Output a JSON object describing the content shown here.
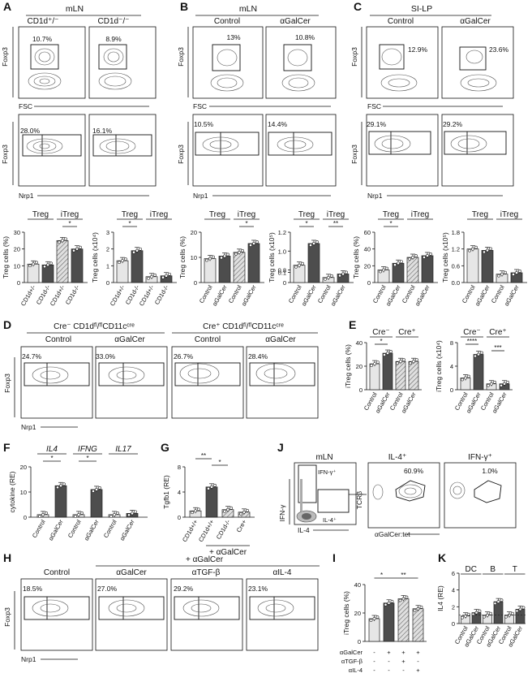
{
  "panels": {
    "A": {
      "letter": "A",
      "title": "mLN",
      "cols": [
        "CD1d⁺/⁻",
        "CD1d⁻/⁻"
      ],
      "gate1": [
        "10.7%",
        "8.9%"
      ],
      "gate2": [
        "28.0%",
        "16.1%"
      ],
      "bar_groups": [
        "Treg",
        "iTreg"
      ],
      "chart1": {
        "ylabel": "Treg cells (%)",
        "ticks": [
          "0",
          "10",
          "20",
          "30"
        ],
        "ymax": 30,
        "cats": [
          "CD1d+/-",
          "CD1d-/-",
          "CD1d+/-",
          "CD1d-/-"
        ],
        "values": [
          11,
          10.5,
          25,
          20
        ],
        "sig": "*",
        "sig_pair": [
          2,
          3
        ]
      },
      "chart2": {
        "ylabel": "Treg cells (x10⁴)",
        "ticks": [
          "0",
          "1",
          "2",
          "3"
        ],
        "ymax": 3,
        "cats": [
          "CD1d+/-",
          "CD1d-/-",
          "CD1d+/-",
          "CD1d-/-"
        ],
        "values": [
          1.3,
          1.9,
          0.35,
          0.4
        ],
        "sig": "*",
        "sig_pair": [
          0,
          1
        ]
      }
    },
    "B": {
      "letter": "B",
      "title": "mLN",
      "cols": [
        "Control",
        "αGalCer"
      ],
      "gate1": [
        "13%",
        "10.8%"
      ],
      "gate2": [
        "10.5%",
        "14.4%"
      ],
      "bar_groups": [
        "Treg",
        "iTreg"
      ],
      "chart1": {
        "ylabel": "Treg cells (%)",
        "ticks": [
          "0",
          "10",
          "20"
        ],
        "ymax": 20,
        "cats": [
          "Control",
          "αGalCer",
          "Control",
          "αGalCer"
        ],
        "values": [
          9.5,
          10.5,
          12,
          15.5
        ],
        "sig": "*",
        "sig_pair": [
          2,
          3
        ]
      },
      "chart2": {
        "ylabel": "Treg cells (x10⁵)",
        "ticks": [
          "0",
          "0.1",
          "0.8",
          "1.0",
          "1.2"
        ],
        "cats": [
          "Control",
          "αGalCer",
          "Control",
          "αGalCer"
        ],
        "values": [
          0.85,
          1.08,
          0.05,
          0.085
        ],
        "sig1": "*",
        "sig2": "**"
      }
    },
    "C": {
      "letter": "C",
      "title": "SI-LP",
      "cols": [
        "Control",
        "αGalCer"
      ],
      "gate1": [
        "12.9%",
        "23.6%"
      ],
      "gate2": [
        "29.1%",
        "29.2%"
      ],
      "bar_groups": [
        "Treg",
        "iTreg"
      ],
      "chart1": {
        "ylabel": "Treg cells (%)",
        "ticks": [
          "0",
          "20",
          "40",
          "60"
        ],
        "ymax": 60,
        "cats": [
          "Control",
          "αGalCer",
          "Control",
          "αGalCer"
        ],
        "values": [
          15,
          23,
          30,
          32
        ],
        "sig": "*",
        "sig_pair": [
          0,
          1
        ]
      },
      "chart2": {
        "ylabel": "Treg cells (x10⁵)",
        "ticks": [
          "0.0",
          "0.6",
          "1.2",
          "1.8"
        ],
        "ymax": 1.8,
        "cats": [
          "Control",
          "αGalCer",
          "Control",
          "αGalCer"
        ],
        "values": [
          1.2,
          1.15,
          0.3,
          0.35
        ]
      }
    },
    "D": {
      "letter": "D",
      "group1": "Cre⁻ CD1dᶠˡ/ᶠˡCD11cᶜʳᵉ",
      "group2": "Cre⁺ CD1dᶠˡ/ᶠˡCD11cᶜʳᵉ",
      "cols": [
        "Control",
        "αGalCer",
        "Control",
        "αGalCer"
      ],
      "gates": [
        "24.7%",
        "33.0%",
        "26.7%",
        "28.4%"
      ]
    },
    "E": {
      "letter": "E",
      "groups": [
        "Cre⁻",
        "Cre⁺"
      ],
      "chart1": {
        "ylabel": "iTreg cells (%)",
        "ticks": [
          "0",
          "20",
          "40"
        ],
        "ymax": 40,
        "cats": [
          "Control",
          "αGalCer",
          "Control",
          "αGalCer"
        ],
        "values": [
          22,
          31,
          24,
          24
        ],
        "sig": "*",
        "sig_pair": [
          0,
          1
        ]
      },
      "chart2": {
        "ylabel": "iTreg cells (x10⁴)",
        "ticks": [
          "0",
          "4",
          "8"
        ],
        "ymax": 8,
        "cats": [
          "Control",
          "αGalCer",
          "Control",
          "αGalCer"
        ],
        "values": [
          2,
          6,
          1,
          1
        ],
        "sig1": "****",
        "sig2": "***"
      }
    },
    "F": {
      "letter": "F",
      "ylabel": "cytokine (RE)",
      "ticks": [
        "0",
        "10",
        "20"
      ],
      "ymax": 20,
      "genes": [
        "IL4",
        "IFNG",
        "IL17"
      ],
      "cats": [
        "Control",
        "αGalCer",
        "Control",
        "αGalCer",
        "Control",
        "αGalCer"
      ],
      "values": [
        1,
        12.5,
        1,
        11,
        1,
        1.5
      ],
      "sig1": "*",
      "sig2": "*"
    },
    "G": {
      "letter": "G",
      "ylabel": "Tgfb1 (RE)",
      "ticks": [
        "0",
        "4",
        "8"
      ],
      "ymax": 8,
      "cats": [
        "CD1d+/+",
        "CD1d+/+",
        "CD1d-/-",
        "Cre+"
      ],
      "values": [
        1,
        4.8,
        1.2,
        0.8
      ],
      "footer": "+ αGalCer",
      "sig1": "**",
      "sig2": "*"
    },
    "J": {
      "letter": "J",
      "title": "mLN",
      "gate_a": "IFN-γ⁺",
      "gate_b": "IL-4⁺",
      "xlabel": "IL-4",
      "ylabel": "IFN-γ",
      "plot2_title": "IL-4⁺",
      "plot3_title": "IFN-γ⁺",
      "pct2": "60.9%",
      "pct3": "1.0%",
      "xlabel2": "αGalCer:tet",
      "ylabel2": "TCRβ"
    },
    "H": {
      "letter": "H",
      "header": "+ αGalCer",
      "cols": [
        "Control",
        "αGalCer",
        "αTGF-β",
        "αIL-4"
      ],
      "gates": [
        "18.5%",
        "27.0%",
        "29.2%",
        "23.1%"
      ]
    },
    "I": {
      "letter": "I",
      "ylabel": "iTreg cells (%)",
      "ticks": [
        "0",
        "20",
        "40"
      ],
      "ymax": 40,
      "values": [
        16,
        27,
        30,
        23
      ],
      "sig1": "*",
      "sig2": "**",
      "rows": [
        {
          "label": "αGalCer",
          "marks": [
            "-",
            "+",
            "+",
            "+"
          ]
        },
        {
          "label": "αTGF-β",
          "marks": [
            "-",
            "-",
            "+",
            "-"
          ]
        },
        {
          "label": "αIL-4",
          "marks": [
            "-",
            "-",
            "-",
            "+"
          ]
        }
      ]
    },
    "K": {
      "letter": "K",
      "ylabel": "IL4 (RE)",
      "ticks": [
        "0",
        "2",
        "4",
        "6"
      ],
      "ymax": 6,
      "groups": [
        "DC",
        "B",
        "T"
      ],
      "cats": [
        "Control",
        "αGalCer",
        "Control",
        "αGalCer",
        "Control",
        "αGalCer"
      ],
      "values": [
        0.9,
        1.3,
        1,
        2.6,
        1,
        1.7
      ]
    }
  },
  "axes": {
    "foxp3": "Foxp3",
    "fsc": "FSC",
    "nrp1": "Nrp1"
  },
  "colors": {
    "ctrl": "#e6e6e6",
    "hatch": "#bdbdbd",
    "dark": "#4d4d4d",
    "mid": "#8a8a8a"
  }
}
